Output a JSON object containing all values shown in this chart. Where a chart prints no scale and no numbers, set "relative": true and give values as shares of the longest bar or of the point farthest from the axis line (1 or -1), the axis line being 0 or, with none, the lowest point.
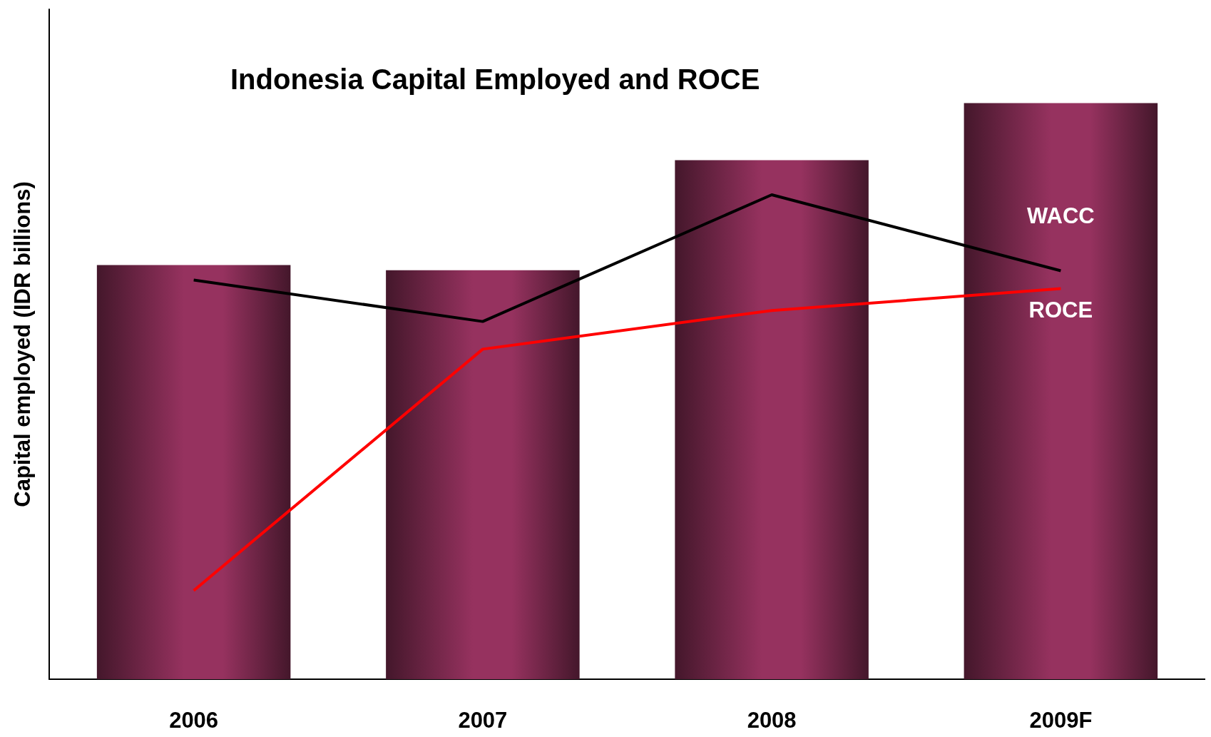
{
  "chart_data": {
    "type": "bar",
    "title": "Indonesia Capital Employed and ROCE",
    "ylabel": "Capital employed (IDR billions)",
    "categories": [
      "2006",
      "2007",
      "2008",
      "2009F"
    ],
    "relative": true,
    "legend": false,
    "grid": false,
    "series": [
      {
        "color": "#96325f",
        "values": [
          0.719,
          0.71,
          0.901,
          1
        ]
      },
      {
        "type": "line",
        "name": "WACC",
        "color": "#000000",
        "values": [
          0.693,
          0.621,
          0.841,
          0.709
        ]
      },
      {
        "type": "line",
        "name": "ROCE",
        "color": "#ff0000",
        "values": [
          0.154,
          0.573,
          0.64,
          0.678
        ]
      }
    ]
  }
}
